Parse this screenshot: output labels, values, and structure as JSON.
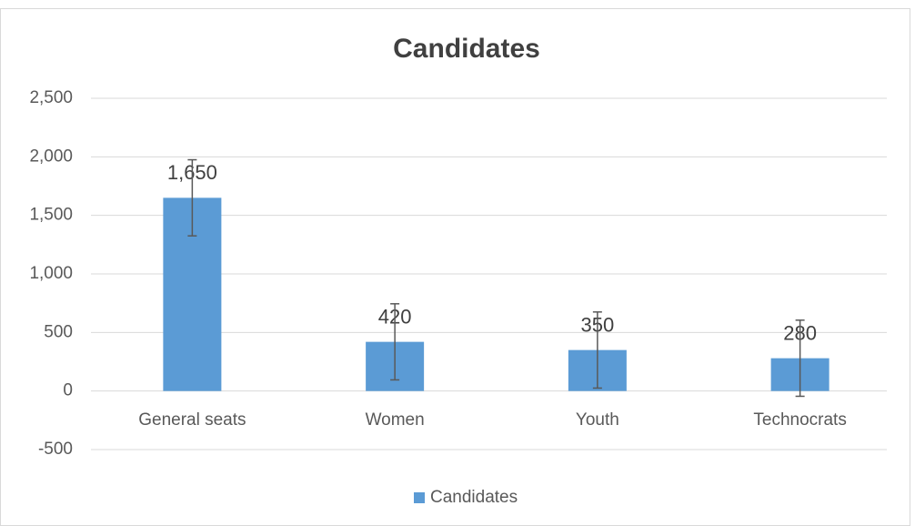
{
  "chart_data": {
    "type": "bar",
    "title": "Candidates",
    "categories": [
      "General seats",
      "Women",
      "Youth",
      "Technocrats"
    ],
    "series": [
      {
        "name": "Candidates",
        "color": "#5b9bd5",
        "values": [
          1650,
          420,
          350,
          280
        ],
        "value_labels": [
          "1,650",
          "420",
          "350",
          "280"
        ],
        "errors": [
          325,
          325,
          325,
          325
        ]
      }
    ],
    "ylim": [
      -500,
      2500
    ],
    "yticks": [
      -500,
      0,
      500,
      {
        "value": 1000,
        "label": "1,000"
      },
      {
        "value": 1500,
        "label": "1,500"
      },
      {
        "value": 2000,
        "label": "2,000"
      },
      {
        "value": 2500,
        "label": "2,500"
      }
    ],
    "grid": true,
    "legend": "bottom"
  }
}
